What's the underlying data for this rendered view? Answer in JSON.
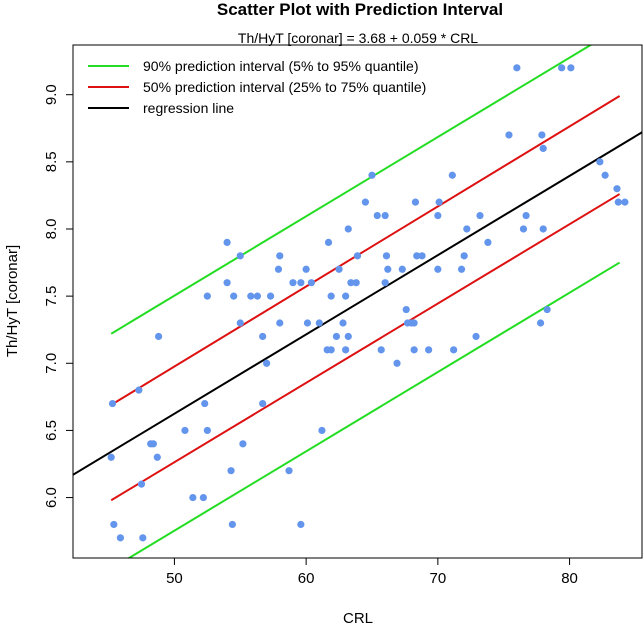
{
  "chart_data": {
    "type": "scatter",
    "title": "Scatter Plot with Prediction Interval",
    "subtitle": "Th/HyT  [coronar] = 3.68 + 0.059 * CRL",
    "xlabel": "CRL",
    "ylabel": "Th/HyT [coronar]",
    "xlim": [
      42.3,
      85.5
    ],
    "ylim": [
      5.55,
      9.37
    ],
    "xticks": [
      50,
      60,
      70,
      80
    ],
    "yticks": [
      6.0,
      6.5,
      7.0,
      7.5,
      8.0,
      8.5,
      9.0
    ],
    "ytick_labels": [
      "6.0",
      "6.5",
      "7.0",
      "7.5",
      "8.0",
      "8.5",
      "9.0"
    ],
    "grid": false,
    "legend_position": "top-left",
    "point_color": "#6495ED",
    "regression": {
      "intercept": 3.68,
      "slope": 0.059
    },
    "series": [
      {
        "name": "90% prediction interval (5% to 95% quantile)",
        "color": "#22DD22",
        "x": [
          45.2,
          83.8
        ],
        "lower": [
          5.47,
          7.75
        ],
        "upper": [
          7.22,
          9.5
        ]
      },
      {
        "name": "50% prediction interval (25% to 75% quantile)",
        "color": "#DD1111",
        "x": [
          45.2,
          83.8
        ],
        "lower": [
          5.98,
          8.26
        ],
        "upper": [
          6.69,
          8.99
        ]
      },
      {
        "name": "regression line",
        "color": "#000000",
        "x": [
          42.3,
          85.5
        ],
        "y": [
          6.17,
          8.72
        ]
      }
    ],
    "points": [
      [
        45.2,
        6.3
      ],
      [
        45.3,
        6.7
      ],
      [
        45.4,
        5.8
      ],
      [
        45.9,
        5.7
      ],
      [
        47.3,
        6.8
      ],
      [
        47.5,
        6.1
      ],
      [
        47.6,
        5.7
      ],
      [
        48.2,
        6.4
      ],
      [
        48.4,
        6.4
      ],
      [
        48.7,
        6.3
      ],
      [
        48.8,
        7.2
      ],
      [
        50.8,
        6.5
      ],
      [
        51.4,
        6.0
      ],
      [
        52.2,
        6.0
      ],
      [
        52.3,
        6.7
      ],
      [
        52.5,
        6.5
      ],
      [
        52.5,
        7.5
      ],
      [
        54.0,
        7.9
      ],
      [
        54.0,
        7.6
      ],
      [
        54.3,
        6.2
      ],
      [
        54.4,
        5.8
      ],
      [
        54.5,
        7.5
      ],
      [
        55.0,
        7.8
      ],
      [
        55.0,
        7.3
      ],
      [
        55.2,
        6.4
      ],
      [
        55.8,
        7.5
      ],
      [
        56.3,
        7.5
      ],
      [
        56.7,
        7.2
      ],
      [
        56.7,
        6.7
      ],
      [
        57.0,
        7.0
      ],
      [
        57.3,
        7.5
      ],
      [
        57.9,
        7.7
      ],
      [
        58.0,
        7.8
      ],
      [
        58.0,
        7.3
      ],
      [
        58.7,
        6.2
      ],
      [
        59.0,
        7.6
      ],
      [
        59.6,
        5.8
      ],
      [
        59.6,
        7.6
      ],
      [
        60.0,
        7.7
      ],
      [
        60.1,
        7.3
      ],
      [
        60.4,
        7.6
      ],
      [
        61.0,
        7.3
      ],
      [
        61.2,
        6.5
      ],
      [
        61.6,
        7.1
      ],
      [
        61.7,
        7.9
      ],
      [
        61.9,
        7.5
      ],
      [
        61.9,
        7.1
      ],
      [
        62.3,
        7.2
      ],
      [
        62.5,
        7.7
      ],
      [
        62.8,
        7.3
      ],
      [
        63.0,
        7.1
      ],
      [
        63.0,
        7.5
      ],
      [
        63.2,
        8.0
      ],
      [
        63.2,
        7.2
      ],
      [
        63.4,
        7.6
      ],
      [
        63.8,
        7.6
      ],
      [
        63.9,
        7.8
      ],
      [
        64.5,
        8.2
      ],
      [
        65.0,
        8.4
      ],
      [
        65.4,
        8.1
      ],
      [
        65.7,
        7.1
      ],
      [
        66.0,
        8.1
      ],
      [
        66.0,
        7.6
      ],
      [
        66.1,
        7.8
      ],
      [
        66.2,
        7.7
      ],
      [
        66.9,
        7.0
      ],
      [
        67.3,
        7.7
      ],
      [
        67.6,
        7.4
      ],
      [
        67.7,
        7.3
      ],
      [
        68.0,
        7.3
      ],
      [
        68.2,
        7.3
      ],
      [
        68.2,
        7.1
      ],
      [
        68.3,
        8.2
      ],
      [
        68.4,
        7.8
      ],
      [
        68.8,
        7.8
      ],
      [
        69.3,
        7.1
      ],
      [
        70.0,
        8.1
      ],
      [
        70.0,
        7.7
      ],
      [
        70.1,
        8.2
      ],
      [
        71.1,
        8.4
      ],
      [
        71.2,
        7.1
      ],
      [
        71.8,
        7.7
      ],
      [
        72.0,
        7.8
      ],
      [
        72.2,
        8.0
      ],
      [
        72.9,
        7.2
      ],
      [
        73.2,
        8.1
      ],
      [
        73.8,
        7.9
      ],
      [
        75.4,
        8.7
      ],
      [
        76.0,
        9.2
      ],
      [
        76.5,
        8.0
      ],
      [
        76.7,
        8.1
      ],
      [
        77.8,
        7.3
      ],
      [
        77.9,
        8.7
      ],
      [
        78.0,
        8.6
      ],
      [
        78.0,
        8.0
      ],
      [
        78.3,
        7.4
      ],
      [
        79.4,
        9.2
      ],
      [
        80.1,
        9.2
      ],
      [
        82.3,
        8.5
      ],
      [
        82.7,
        8.4
      ],
      [
        83.6,
        8.3
      ],
      [
        83.7,
        8.2
      ],
      [
        84.2,
        8.2
      ]
    ]
  }
}
